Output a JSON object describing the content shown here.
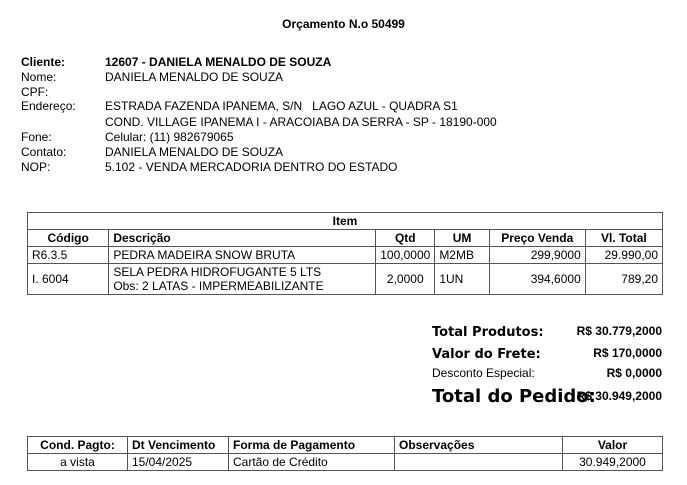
{
  "title": "Orçamento N.o 50499",
  "client": {
    "cliente_label": "Cliente:",
    "cliente": "12607 - DANIELA MENALDO DE SOUZA",
    "nome_label": "Nome:",
    "nome": "DANIELA MENALDO DE SOUZA",
    "cpf_label": "CPF:",
    "endereco_label": "Endereço:",
    "endereco1": "ESTRADA FAZENDA IPANEMA, S/N   LAGO AZUL - QUADRA S1",
    "endereco2": "COND. VILLAGE IPANEMA I - ARACOIABA DA SERRA - SP - 18190-000",
    "fone_label": "Fone:",
    "fone": "Celular: (11) 982679065",
    "contato_label": "Contato:",
    "contato": "DANIELA MENALDO DE SOUZA",
    "nop_label": "NOP:",
    "nop": "5.102 - VENDA MERCADORIA DENTRO DO ESTADO"
  },
  "items": {
    "title": "Item",
    "headers": [
      "Código",
      "Descrição",
      "Qtd",
      "UM",
      "Preço Venda",
      "Vl. Total"
    ],
    "rows": [
      {
        "codigo": "R6.3.5",
        "descricao": "PEDRA MADEIRA SNOW BRUTA",
        "obs": "",
        "qtd": "100,0000",
        "um": "M2MB",
        "preco": "299,9000",
        "total": "29.990,00"
      },
      {
        "codigo": "I. 6004",
        "descricao": "SELA PEDRA HIDROFUGANTE 5 LTS",
        "obs": "Obs: 2 LATAS - IMPERMEABILIZANTE",
        "qtd": "2,0000",
        "um": "1UN",
        "preco": "394,6000",
        "total": "789,20"
      }
    ]
  },
  "totals": {
    "produtos_label": "Total Produtos:",
    "produtos": "R$ 30.779,2000",
    "frete_label": "Valor do Frete:",
    "frete": "R$ 170,0000",
    "desconto_label": "Desconto Especial:",
    "desconto": "R$ 0,0000",
    "pedido_label": "Total do Pedido:",
    "pedido": "R$ 30.949,2000"
  },
  "payment": {
    "headers": [
      "Cond. Pagto:",
      "Dt Vencimento",
      "Forma de Pagamento",
      "Observações",
      "Valor"
    ],
    "row": {
      "cond": "a vista",
      "venc": "15/04/2025",
      "forma": "Cartão de Crédito",
      "obs": "",
      "valor": "30.949,2000"
    }
  }
}
